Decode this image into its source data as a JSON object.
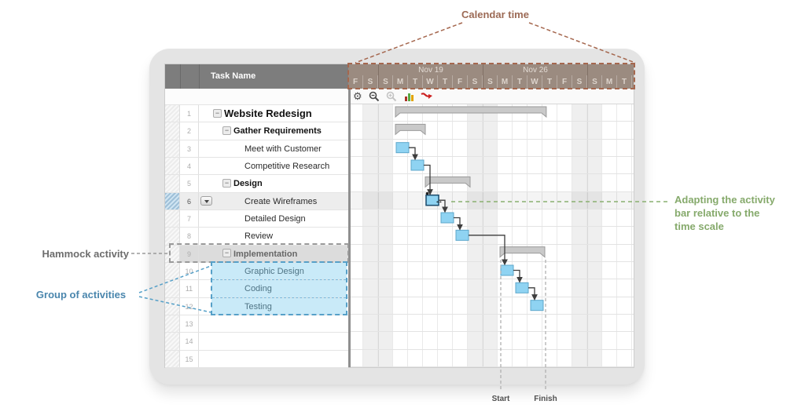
{
  "annotations": {
    "calendar_time": "Calendar time",
    "hammock": "Hammock activity",
    "group": "Group of activities",
    "adapting_lines": [
      "Adapting the activity",
      "bar relative to the",
      "time scale"
    ],
    "start": "Start",
    "finish": "Finish"
  },
  "colors": {
    "task_bar": "#8fd3f2",
    "task_bar_border": "#5da7cb",
    "summary_bar": "#c9c9c9",
    "summary_bar_border": "#9a9a9a",
    "calendar_header": "#9b8b80",
    "calendar_annotation": "#a5674e",
    "calendar_text": "#9c6a55",
    "hammock_text": "#6d6d6d",
    "group_text": "#4a86ad",
    "group_border": "#56a0c8",
    "group_fill": "#c9eaf8",
    "adapting_text": "#86aa6c",
    "selection_border": "#19496b",
    "connector": "#3d3d3d"
  },
  "window": {
    "table": {
      "header": "Task Name",
      "rows": [
        {
          "num": "1",
          "name": "Website Redesign",
          "level": 0,
          "bold": true,
          "collapse": true,
          "large": true
        },
        {
          "num": "2",
          "name": "Gather Requirements",
          "level": 1,
          "bold": true,
          "collapse": true
        },
        {
          "num": "3",
          "name": "Meet with Customer",
          "level": 2
        },
        {
          "num": "4",
          "name": "Competitive Research",
          "level": 2
        },
        {
          "num": "5",
          "name": "Design",
          "level": 1,
          "bold": true,
          "collapse": true
        },
        {
          "num": "6",
          "name": "Create Wireframes",
          "level": 2,
          "selected": true
        },
        {
          "num": "7",
          "name": "Detailed Design",
          "level": 2
        },
        {
          "num": "8",
          "name": "Review",
          "level": 2
        },
        {
          "num": "9",
          "name": "Implementation",
          "level": 1,
          "collapse": true,
          "hammock": true
        },
        {
          "num": "10",
          "name": "Graphic Design",
          "level": 2,
          "grouped": true
        },
        {
          "num": "11",
          "name": "Coding",
          "level": 2,
          "grouped": true
        },
        {
          "num": "12",
          "name": "Testing",
          "level": 2,
          "grouped": true
        },
        {
          "num": "13",
          "name": ""
        },
        {
          "num": "14",
          "name": ""
        },
        {
          "num": "15",
          "name": ""
        }
      ]
    },
    "toolbar_icons": [
      "gear-icon",
      "zoom-out-icon",
      "zoom-in-icon",
      "resource-chart-icon",
      "critical-path-icon"
    ],
    "timeline": {
      "week_labels": [
        "",
        "Nov 19",
        "Nov 26",
        ""
      ],
      "week_spans": [
        2,
        7,
        7,
        3
      ],
      "days": [
        "F",
        "S",
        "S",
        "M",
        "T",
        "W",
        "T",
        "F",
        "S",
        "S",
        "M",
        "T",
        "W",
        "T",
        "F",
        "S",
        "S",
        "M",
        "T"
      ],
      "weekend_indices": [
        1,
        2,
        8,
        9,
        15,
        16
      ]
    },
    "schedule": {
      "bars": [
        {
          "row": 1,
          "start": 3,
          "days": 10.1,
          "type": "summary"
        },
        {
          "row": 2,
          "start": 3,
          "days": 2,
          "type": "summary"
        },
        {
          "row": 3,
          "start": 3,
          "days": 1,
          "type": "task"
        },
        {
          "row": 4,
          "start": 4,
          "days": 1,
          "type": "task"
        },
        {
          "row": 5,
          "start": 5,
          "days": 3,
          "type": "summary"
        },
        {
          "row": 6,
          "start": 5,
          "days": 1,
          "type": "task",
          "selected": true
        },
        {
          "row": 7,
          "start": 6,
          "days": 1,
          "type": "task"
        },
        {
          "row": 8,
          "start": 7,
          "days": 1,
          "type": "task"
        },
        {
          "row": 9,
          "start": 10,
          "days": 3,
          "type": "summary"
        },
        {
          "row": 10,
          "start": 10,
          "days": 1,
          "type": "task"
        },
        {
          "row": 11,
          "start": 11,
          "days": 1,
          "type": "task"
        },
        {
          "row": 12,
          "start": 12,
          "days": 1,
          "type": "task"
        }
      ],
      "links": [
        [
          3,
          4
        ],
        [
          4,
          6
        ],
        [
          6,
          7
        ],
        [
          7,
          8
        ],
        [
          8,
          10
        ],
        [
          10,
          11
        ],
        [
          11,
          12
        ]
      ]
    }
  }
}
